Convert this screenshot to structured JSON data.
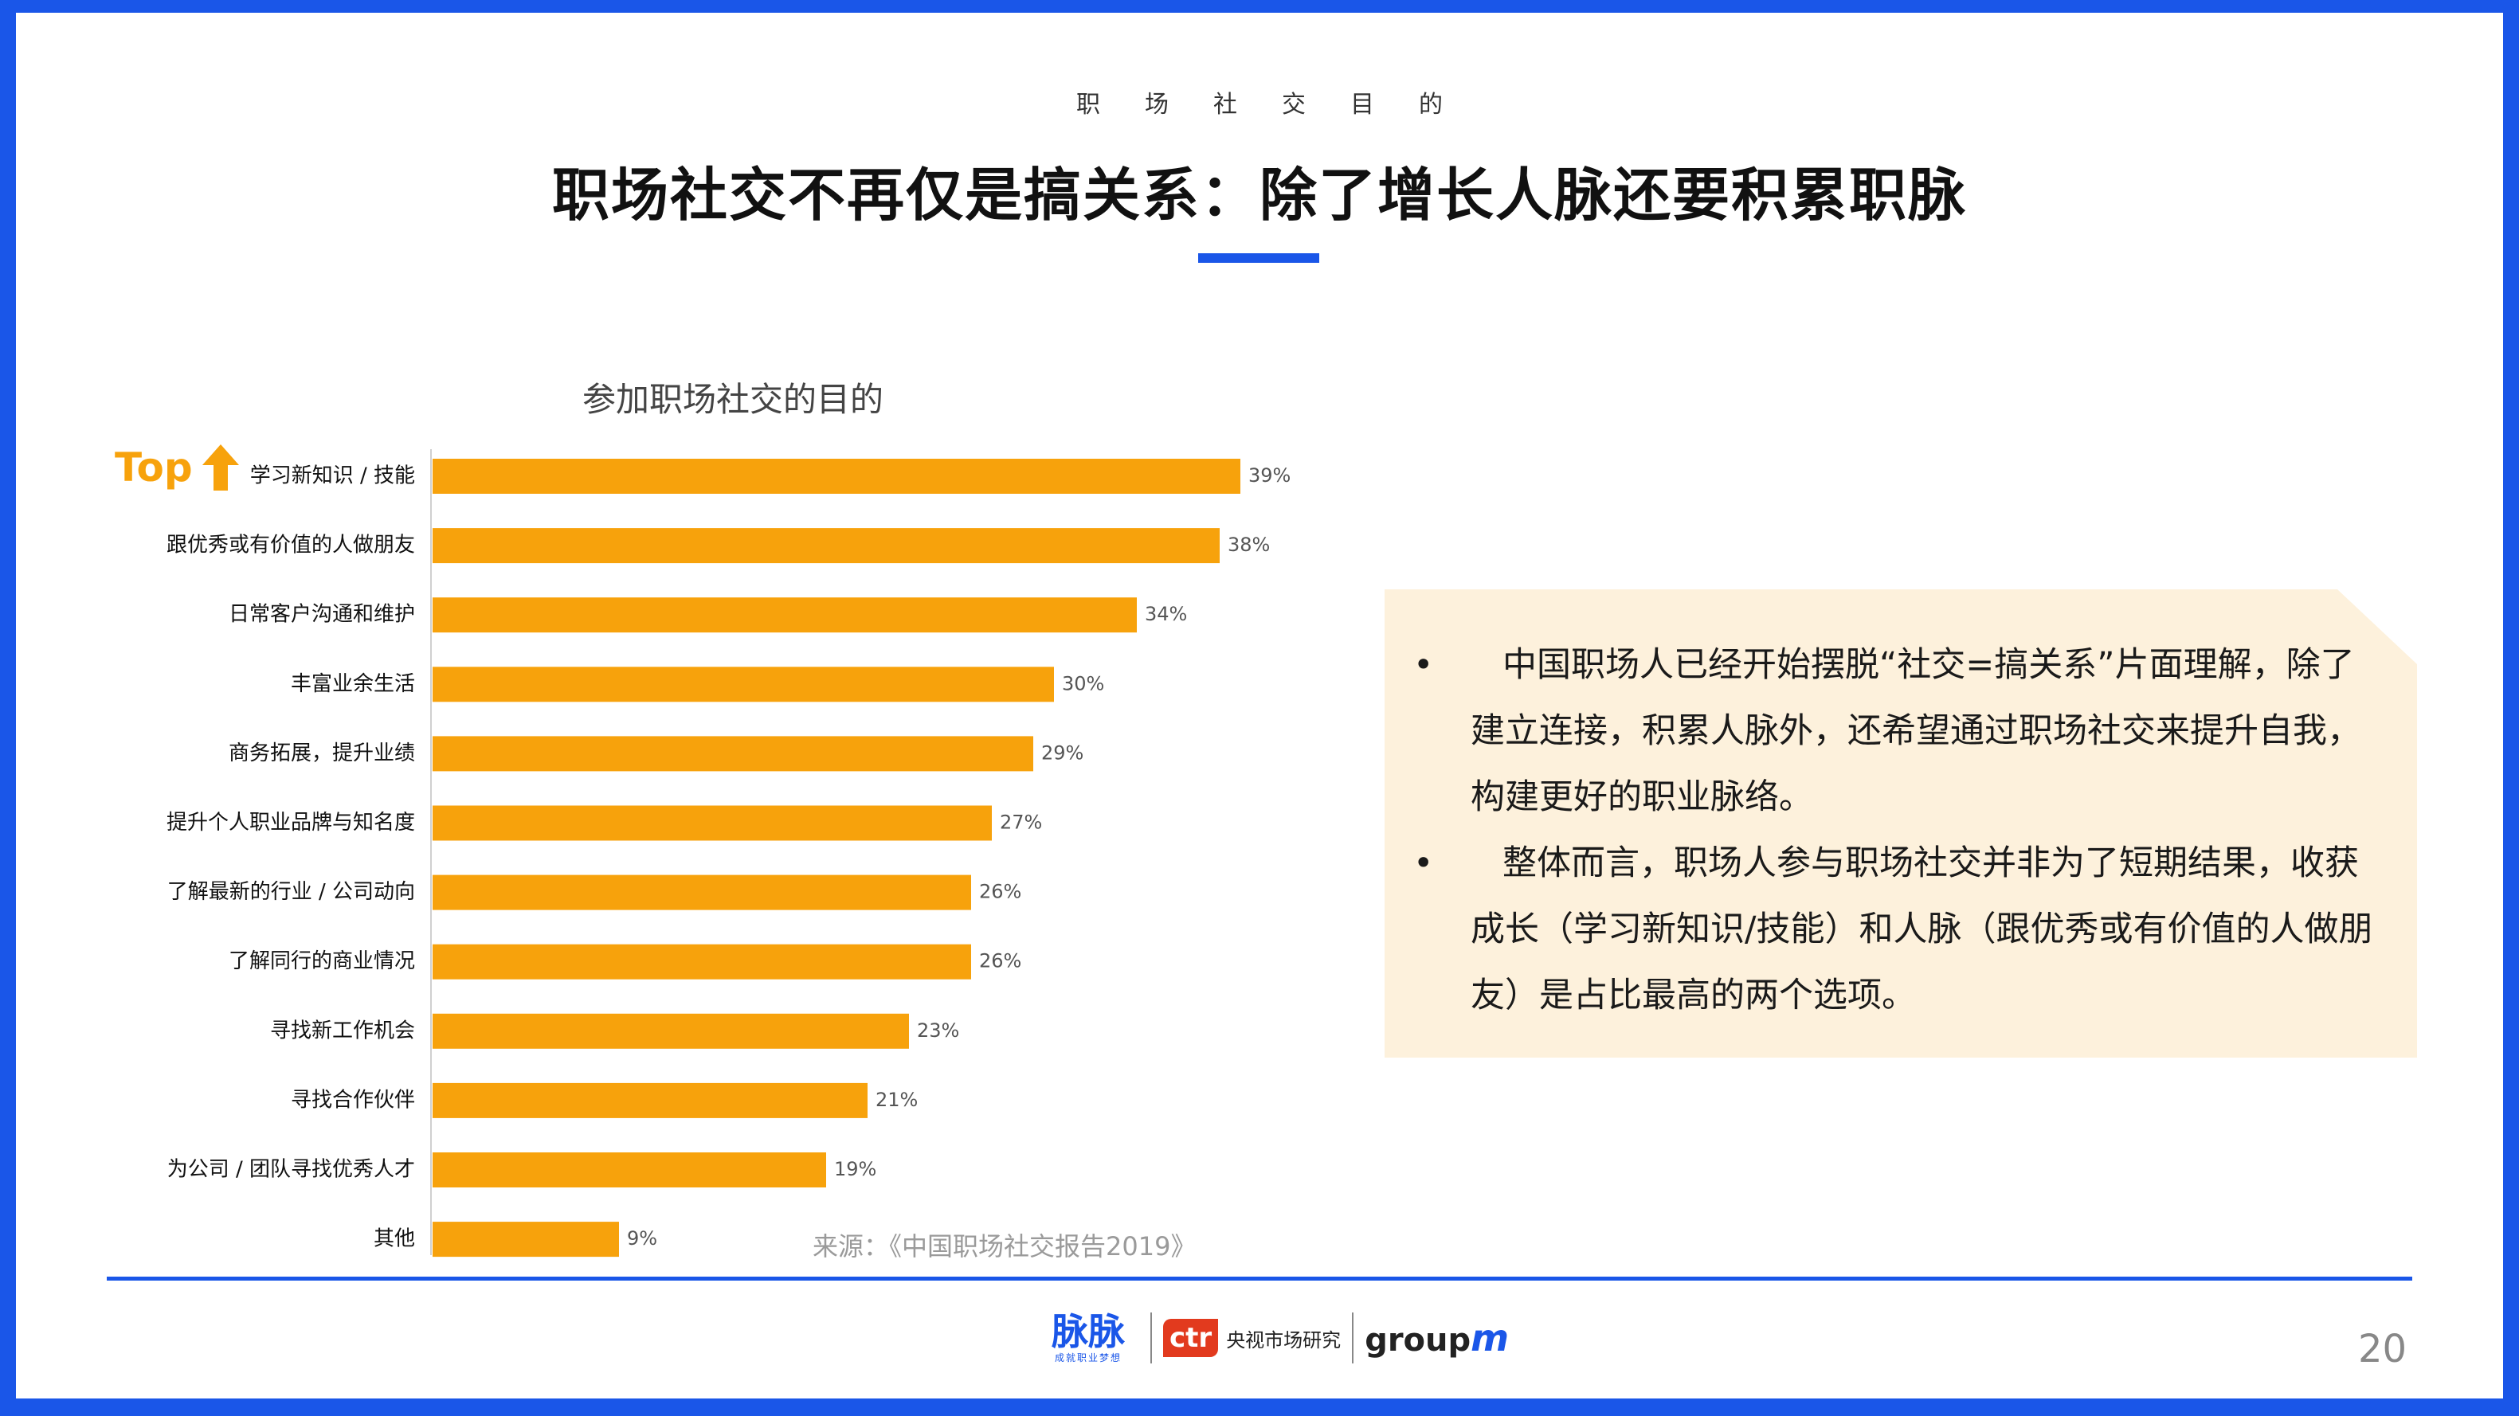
{
  "header": {
    "kicker": "职场社交目的",
    "title": "职场社交不再仅是搞关系：除了增长人脉还要积累职脉"
  },
  "chart_data": {
    "type": "bar",
    "orientation": "horizontal",
    "title": "参加职场社交的目的",
    "categories": [
      "学习新知识 / 技能",
      "跟优秀或有价值的人做朋友",
      "日常客户沟通和维护",
      "丰富业余生活",
      "商务拓展，提升业绩",
      "提升个人职业品牌与知名度",
      "了解最新的行业 / 公司动向",
      "了解同行的商业情况",
      "寻找新工作机会",
      "寻找合作伙伴",
      "为公司 / 团队寻找优秀人才",
      "其他"
    ],
    "values": [
      39,
      38,
      34,
      30,
      29,
      27,
      26,
      26,
      23,
      21,
      19,
      9
    ],
    "value_labels": [
      "39%",
      "38%",
      "34%",
      "30%",
      "29%",
      "27%",
      "26%",
      "26%",
      "23%",
      "21%",
      "19%",
      "9%"
    ],
    "unit": "%",
    "bar_color": "#f7a20c",
    "xlim": [
      0,
      40
    ],
    "grid": false
  },
  "top_badge": {
    "label": "Top",
    "color": "#f7a20c"
  },
  "source": "来源：《中国职场社交报告2019》",
  "callout": {
    "bullets": [
      "中国职场人已经开始摆脱“社交=搞关系”片面理解，除了建立连接，积累人脉外，还希望通过职场社交来提升自我，构建更好的职业脉络。",
      "整体而言，职场人参与职场社交并非为了短期结果，收获成长（学习新知识/技能）和人脉（跟优秀或有价值的人做朋友）是占比最高的两个选项。"
    ],
    "bullet_mark": "•",
    "background": "#fdf1dc"
  },
  "footer": {
    "logo_maimai": "脉脉",
    "logo_maimai_tagline": "成就职业梦想",
    "logo_ctr_mark": "ctr",
    "logo_ctr_cn": "央视市场研究",
    "logo_groupm": "group",
    "logo_groupm_m": "m",
    "page_number": "20"
  },
  "colors": {
    "accent": "#1a56e8",
    "bar": "#f7a20c"
  }
}
